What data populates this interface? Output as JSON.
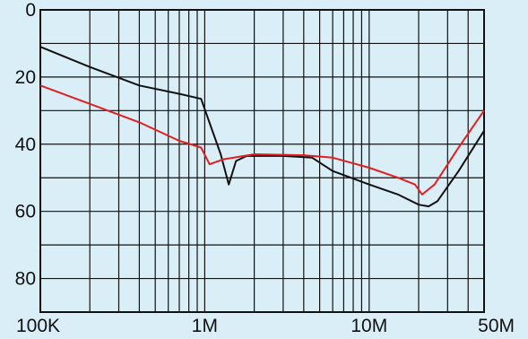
{
  "chart_data": {
    "type": "line",
    "title": "",
    "xlabel": "",
    "ylabel": "",
    "x_scale": "log",
    "x_range": [
      100000,
      50000000
    ],
    "y_range": [
      0,
      90
    ],
    "y_inverted": true,
    "grid": true,
    "x_ticks": [
      {
        "value": 100000,
        "label": "100K"
      },
      {
        "value": 1000000,
        "label": "1M"
      },
      {
        "value": 10000000,
        "label": "10M"
      },
      {
        "value": 50000000,
        "label": "50M"
      }
    ],
    "y_ticks": [
      {
        "value": 0,
        "label": "0"
      },
      {
        "value": 20,
        "label": "20"
      },
      {
        "value": 40,
        "label": "40"
      },
      {
        "value": 60,
        "label": "60"
      },
      {
        "value": 80,
        "label": "80"
      }
    ],
    "series": [
      {
        "color": "#111111",
        "points": [
          [
            100000,
            11
          ],
          [
            200000,
            17
          ],
          [
            400000,
            22.5
          ],
          [
            700000,
            25
          ],
          [
            950000,
            26.5
          ],
          [
            1250000,
            43
          ],
          [
            1400000,
            52
          ],
          [
            1550000,
            45
          ],
          [
            1800000,
            43.5
          ],
          [
            3000000,
            43.5
          ],
          [
            4500000,
            44
          ],
          [
            6000000,
            48
          ],
          [
            10000000,
            52
          ],
          [
            15000000,
            55
          ],
          [
            20000000,
            58
          ],
          [
            23000000,
            58.5
          ],
          [
            26000000,
            57
          ],
          [
            35000000,
            48
          ],
          [
            50000000,
            36
          ]
        ]
      },
      {
        "color": "#e02020",
        "points": [
          [
            100000,
            22.5
          ],
          [
            200000,
            28
          ],
          [
            400000,
            33.5
          ],
          [
            700000,
            39
          ],
          [
            950000,
            41
          ],
          [
            1070000,
            46
          ],
          [
            1300000,
            44.5
          ],
          [
            2000000,
            43
          ],
          [
            4000000,
            43.3
          ],
          [
            6000000,
            44
          ],
          [
            10000000,
            47
          ],
          [
            15000000,
            50
          ],
          [
            19000000,
            52
          ],
          [
            21000000,
            55
          ],
          [
            25000000,
            52
          ],
          [
            35000000,
            41
          ],
          [
            50000000,
            30
          ]
        ]
      }
    ]
  }
}
